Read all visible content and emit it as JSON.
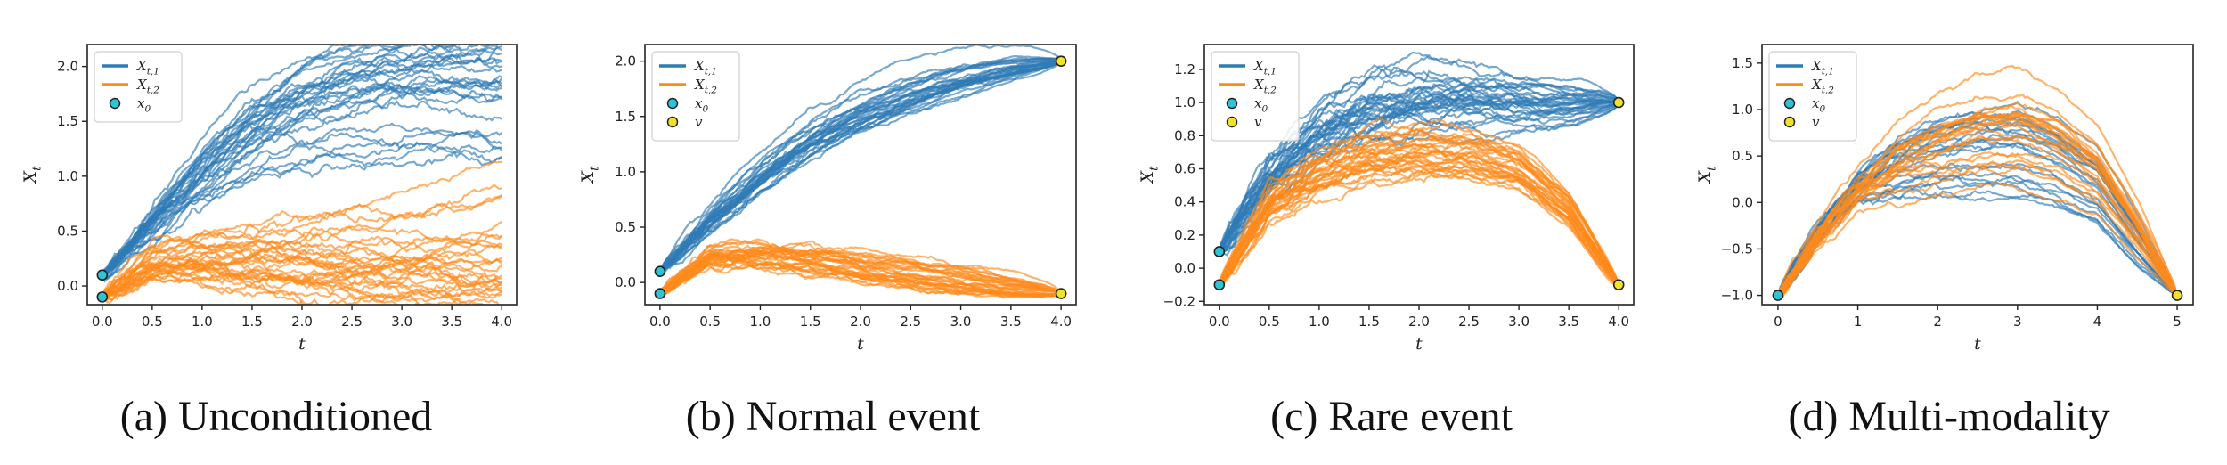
{
  "colors": {
    "series1": "#2f7bb6",
    "series2": "#ff8a1c",
    "x0_marker": "#2ec4d6",
    "v_marker": "#f0e22a",
    "frame": "#222222"
  },
  "chart_data": [
    {
      "type": "line",
      "title": "",
      "caption": "(a) Unconditioned",
      "xlabel": "t",
      "ylabel": "X_t",
      "ylabel_main": "X",
      "ylabel_sub": "t",
      "xlim": [
        -0.15,
        4.15
      ],
      "ylim": [
        -0.17,
        2.2
      ],
      "xticks": [
        0.0,
        0.5,
        1.0,
        1.5,
        2.0,
        2.5,
        3.0,
        3.5,
        4.0
      ],
      "xtick_labels": [
        "0.0",
        "0.5",
        "1.0",
        "1.5",
        "2.0",
        "2.5",
        "3.0",
        "3.5",
        "4.0"
      ],
      "yticks": [
        0.0,
        0.5,
        1.0,
        1.5,
        2.0
      ],
      "ytick_labels": [
        "0.0",
        "0.5",
        "1.0",
        "1.5",
        "2.0"
      ],
      "legend": [
        {
          "label_main": "X",
          "label_sub": "t,1",
          "kind": "line",
          "color": "#2f7bb6"
        },
        {
          "label_main": "X",
          "label_sub": "t,2",
          "kind": "line",
          "color": "#ff8a1c"
        },
        {
          "label_main": "x",
          "label_sub": "0",
          "kind": "marker",
          "color": "#2ec4d6"
        }
      ],
      "legend_location": "top-left",
      "series": [
        {
          "name": "X_{t,1}",
          "color": "#2f7bb6",
          "n_paths": 30,
          "t": [
            0,
            0.5,
            1.0,
            1.5,
            2.0,
            2.5,
            3.0,
            3.5,
            4.0
          ],
          "mean": [
            0.1,
            0.55,
            1.05,
            1.45,
            1.7,
            1.82,
            1.9,
            1.95,
            1.97
          ],
          "band": [
            0,
            0.05,
            0.1,
            0.12,
            0.12,
            0.12,
            0.1,
            0.1,
            0.1
          ],
          "low_mode": {
            "fraction": 0.2,
            "mean": [
              0.1,
              0.5,
              0.85,
              1.1,
              1.25,
              1.3,
              1.3,
              1.3,
              1.25
            ]
          },
          "noise": 0.025
        },
        {
          "name": "X_{t,2}",
          "color": "#ff8a1c",
          "n_paths": 30,
          "t": [
            0,
            0.5,
            1.0,
            1.5,
            2.0,
            2.5,
            3.0,
            3.5,
            4.0
          ],
          "mean": [
            -0.1,
            0.18,
            0.22,
            0.18,
            0.13,
            0.1,
            0.07,
            0.05,
            0.03
          ],
          "band": [
            0,
            0.08,
            0.1,
            0.1,
            0.1,
            0.1,
            0.1,
            0.08,
            0.08
          ],
          "high_mode": {
            "fraction": 0.2,
            "mean": [
              -0.1,
              0.3,
              0.42,
              0.45,
              0.5,
              0.55,
              0.6,
              0.68,
              0.75
            ]
          },
          "noise": 0.025
        }
      ],
      "markers": [
        {
          "label": "x0",
          "t": 0,
          "values": [
            0.1,
            -0.1
          ],
          "color": "#2ec4d6"
        }
      ]
    },
    {
      "type": "line",
      "title": "",
      "caption": "(b) Normal event",
      "xlabel": "t",
      "ylabel": "X_t",
      "ylabel_main": "X",
      "ylabel_sub": "t",
      "xlim": [
        -0.15,
        4.15
      ],
      "ylim": [
        -0.2,
        2.15
      ],
      "xticks": [
        0.0,
        0.5,
        1.0,
        1.5,
        2.0,
        2.5,
        3.0,
        3.5,
        4.0
      ],
      "xtick_labels": [
        "0.0",
        "0.5",
        "1.0",
        "1.5",
        "2.0",
        "2.5",
        "3.0",
        "3.5",
        "4.0"
      ],
      "yticks": [
        0.0,
        0.5,
        1.0,
        1.5,
        2.0
      ],
      "ytick_labels": [
        "0.0",
        "0.5",
        "1.0",
        "1.5",
        "2.0"
      ],
      "legend": [
        {
          "label_main": "X",
          "label_sub": "t,1",
          "kind": "line",
          "color": "#2f7bb6"
        },
        {
          "label_main": "X",
          "label_sub": "t,2",
          "kind": "line",
          "color": "#ff8a1c"
        },
        {
          "label_main": "x",
          "label_sub": "0",
          "kind": "marker",
          "color": "#2ec4d6"
        },
        {
          "label_main": "v",
          "label_sub": "",
          "kind": "marker",
          "color": "#f0e22a"
        }
      ],
      "legend_location": "top-left",
      "series": [
        {
          "name": "X_{t,1}",
          "color": "#2f7bb6",
          "n_paths": 30,
          "t": [
            0,
            0.5,
            1.0,
            1.5,
            2.0,
            2.5,
            3.0,
            3.5,
            4.0
          ],
          "mean": [
            0.1,
            0.55,
            0.95,
            1.28,
            1.52,
            1.7,
            1.83,
            1.93,
            2.0
          ],
          "band": [
            0,
            0.05,
            0.08,
            0.1,
            0.1,
            0.09,
            0.07,
            0.05,
            0
          ],
          "noise": 0.02
        },
        {
          "name": "X_{t,2}",
          "color": "#ff8a1c",
          "n_paths": 30,
          "t": [
            0,
            0.5,
            1.0,
            1.5,
            2.0,
            2.5,
            3.0,
            3.5,
            4.0
          ],
          "mean": [
            -0.1,
            0.22,
            0.23,
            0.18,
            0.12,
            0.06,
            0.0,
            -0.05,
            -0.1
          ],
          "band": [
            0,
            0.06,
            0.07,
            0.07,
            0.07,
            0.06,
            0.05,
            0.03,
            0
          ],
          "noise": 0.02
        }
      ],
      "markers": [
        {
          "label": "x0",
          "t": 0,
          "values": [
            0.1,
            -0.1
          ],
          "color": "#2ec4d6"
        },
        {
          "label": "v",
          "t": 4,
          "values": [
            2.0,
            -0.1
          ],
          "color": "#f0e22a"
        }
      ]
    },
    {
      "type": "line",
      "title": "",
      "caption": "(c) Rare event",
      "xlabel": "t",
      "ylabel": "X_t",
      "ylabel_main": "X",
      "ylabel_sub": "t",
      "xlim": [
        -0.15,
        4.15
      ],
      "ylim": [
        -0.22,
        1.35
      ],
      "xticks": [
        0.0,
        0.5,
        1.0,
        1.5,
        2.0,
        2.5,
        3.0,
        3.5,
        4.0
      ],
      "xtick_labels": [
        "0.0",
        "0.5",
        "1.0",
        "1.5",
        "2.0",
        "2.5",
        "3.0",
        "3.5",
        "4.0"
      ],
      "yticks": [
        -0.2,
        0.0,
        0.2,
        0.4,
        0.6,
        0.8,
        1.0,
        1.2
      ],
      "ytick_labels": [
        "−0.2",
        "0.0",
        "0.2",
        "0.4",
        "0.6",
        "0.8",
        "1.0",
        "1.2"
      ],
      "legend": [
        {
          "label_main": "X",
          "label_sub": "t,1",
          "kind": "line",
          "color": "#2f7bb6"
        },
        {
          "label_main": "X",
          "label_sub": "t,2",
          "kind": "line",
          "color": "#ff8a1c"
        },
        {
          "label_main": "x",
          "label_sub": "0",
          "kind": "marker",
          "color": "#2ec4d6"
        },
        {
          "label_main": "v",
          "label_sub": "",
          "kind": "marker",
          "color": "#f0e22a"
        }
      ],
      "legend_location": "top-left",
      "series": [
        {
          "name": "X_{t,1}",
          "color": "#2f7bb6",
          "n_paths": 30,
          "t": [
            0,
            0.5,
            1.0,
            1.5,
            2.0,
            2.5,
            3.0,
            3.5,
            4.0
          ],
          "mean": [
            0.1,
            0.55,
            0.82,
            0.95,
            1.0,
            1.0,
            0.98,
            0.98,
            1.0
          ],
          "band": [
            0,
            0.08,
            0.1,
            0.12,
            0.13,
            0.1,
            0.07,
            0.05,
            0
          ],
          "noise": 0.025
        },
        {
          "name": "X_{t,2}",
          "color": "#ff8a1c",
          "n_paths": 30,
          "t": [
            0,
            0.5,
            1.0,
            1.5,
            2.0,
            2.5,
            3.0,
            3.5,
            4.0
          ],
          "mean": [
            -0.1,
            0.4,
            0.58,
            0.67,
            0.71,
            0.69,
            0.6,
            0.35,
            -0.1
          ],
          "band": [
            0,
            0.05,
            0.06,
            0.06,
            0.06,
            0.06,
            0.06,
            0.05,
            0
          ],
          "noise": 0.02
        }
      ],
      "markers": [
        {
          "label": "x0",
          "t": 0,
          "values": [
            0.1,
            -0.1
          ],
          "color": "#2ec4d6"
        },
        {
          "label": "v",
          "t": 4,
          "values": [
            1.0,
            -0.1
          ],
          "color": "#f0e22a"
        }
      ]
    },
    {
      "type": "line",
      "title": "",
      "caption": "(d) Multi-modality",
      "xlabel": "t",
      "ylabel": "X_t",
      "ylabel_main": "X",
      "ylabel_sub": "t",
      "xlim": [
        -0.2,
        5.2
      ],
      "ylim": [
        -1.1,
        1.7
      ],
      "xticks": [
        0,
        1,
        2,
        3,
        4,
        5
      ],
      "xtick_labels": [
        "0",
        "1",
        "2",
        "3",
        "4",
        "5"
      ],
      "yticks": [
        -1.0,
        -0.5,
        0.0,
        0.5,
        1.0,
        1.5
      ],
      "ytick_labels": [
        "−1.0",
        "−0.5",
        "0.0",
        "0.5",
        "1.0",
        "1.5"
      ],
      "legend": [
        {
          "label_main": "X",
          "label_sub": "t,1",
          "kind": "line",
          "color": "#2f7bb6"
        },
        {
          "label_main": "X",
          "label_sub": "t,2",
          "kind": "line",
          "color": "#ff8a1c"
        },
        {
          "label_main": "x",
          "label_sub": "0",
          "kind": "marker",
          "color": "#2ec4d6"
        },
        {
          "label_main": "v",
          "label_sub": "",
          "kind": "marker",
          "color": "#f0e22a"
        }
      ],
      "legend_location": "top-left",
      "series": [
        {
          "name": "X_{t,1}",
          "color": "#2f7bb6",
          "n_paths": 22,
          "t": [
            0,
            0.5,
            1.0,
            1.5,
            2.0,
            2.5,
            3.0,
            3.5,
            4.0,
            4.5,
            5.0
          ],
          "mean": [
            -1.0,
            -0.35,
            0.15,
            0.4,
            0.55,
            0.6,
            0.6,
            0.45,
            0.2,
            -0.4,
            -1.0
          ],
          "band": [
            0,
            0.08,
            0.15,
            0.35,
            0.45,
            0.5,
            0.55,
            0.5,
            0.4,
            0.25,
            0
          ],
          "noise": 0.03
        },
        {
          "name": "X_{t,2}",
          "color": "#ff8a1c",
          "n_paths": 22,
          "t": [
            0,
            0.5,
            1.0,
            1.5,
            2.0,
            2.5,
            3.0,
            3.5,
            4.0,
            4.5,
            5.0
          ],
          "mean": [
            -1.0,
            -0.35,
            0.15,
            0.45,
            0.65,
            0.8,
            0.85,
            0.7,
            0.4,
            -0.25,
            -1.0
          ],
          "band": [
            0,
            0.08,
            0.15,
            0.35,
            0.45,
            0.5,
            0.55,
            0.5,
            0.4,
            0.25,
            0
          ],
          "noise": 0.03
        }
      ],
      "markers": [
        {
          "label": "x0",
          "t": 0,
          "values": [
            -1.0
          ],
          "color": "#2ec4d6"
        },
        {
          "label": "v",
          "t": 5,
          "values": [
            -1.0
          ],
          "color": "#f0e22a"
        }
      ]
    }
  ]
}
